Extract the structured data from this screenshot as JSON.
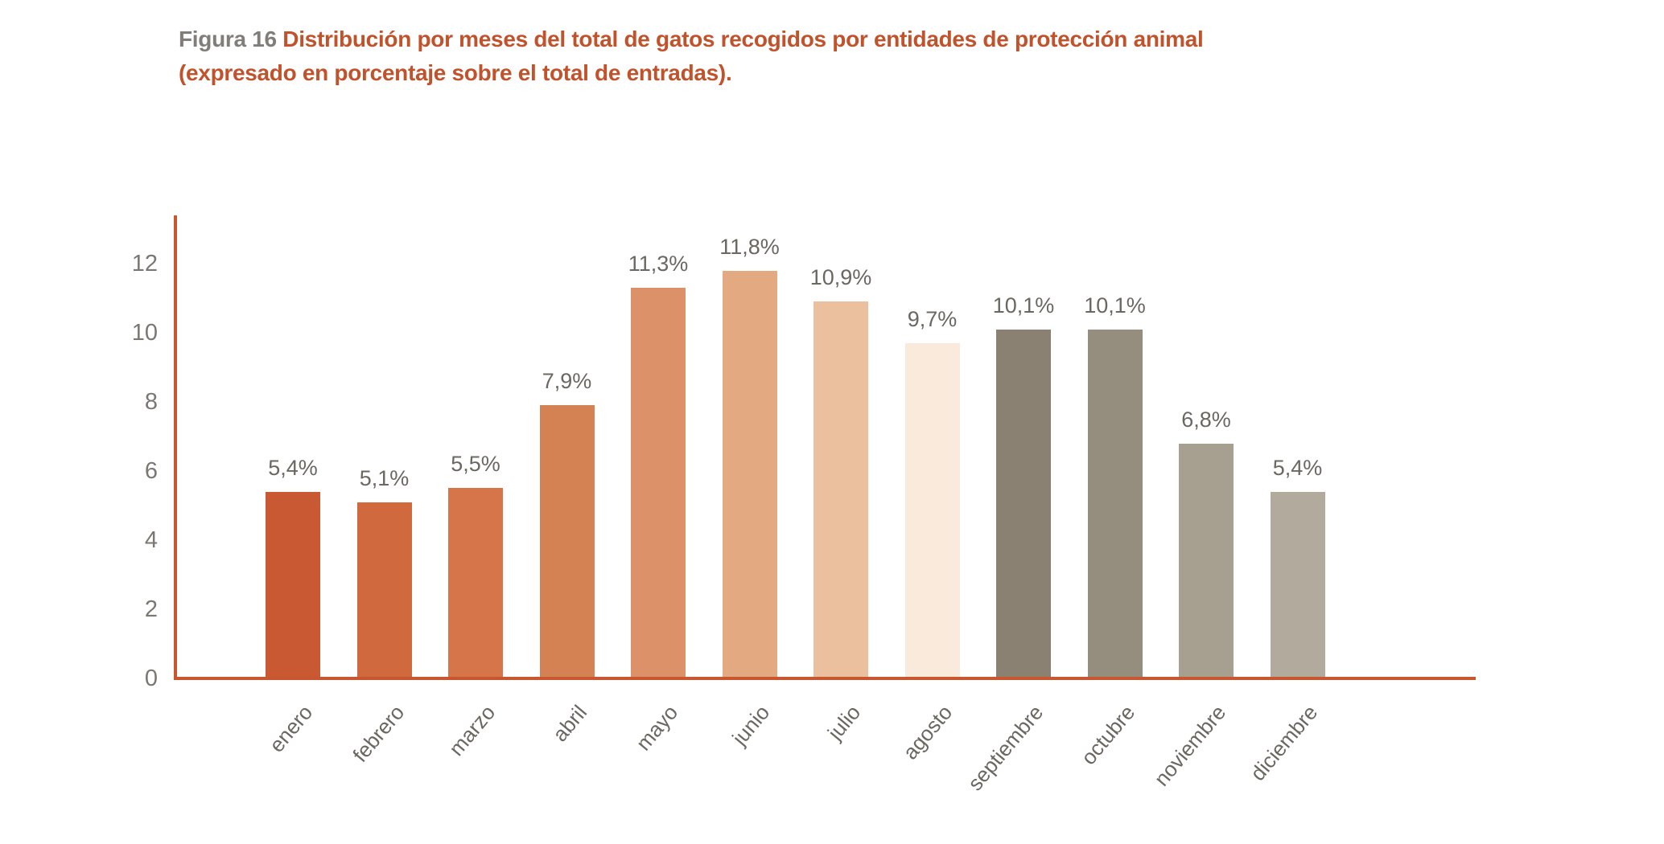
{
  "figure": {
    "label": "Figura 16",
    "title": "Distribución por meses del total de gatos recogidos por entidades de protección animal",
    "subtitle": "(expresado en porcentaje sobre el total de entradas)."
  },
  "chart_data": {
    "type": "bar",
    "title": "Distribución por meses del total de gatos recogidos por entidades de protección animal (expresado en porcentaje sobre el total de entradas).",
    "categories": [
      "enero",
      "febrero",
      "marzo",
      "abril",
      "mayo",
      "junio",
      "julio",
      "agosto",
      "septiembre",
      "octubre",
      "noviembre",
      "diciembre"
    ],
    "values": [
      5.4,
      5.1,
      5.5,
      7.9,
      11.3,
      11.8,
      10.9,
      9.7,
      10.1,
      10.1,
      6.8,
      5.4
    ],
    "value_labels": [
      "5,4%",
      "5,1%",
      "5,5%",
      "7,9%",
      "11,3%",
      "11,8%",
      "10,9%",
      "9,7%",
      "10,1%",
      "10,1%",
      "6,8%",
      "5,4%"
    ],
    "bar_colors": [
      "#c95933",
      "#d1693e",
      "#d57549",
      "#d48253",
      "#dc9168",
      "#e3a981",
      "#eac09f",
      "#f9eadb",
      "#8a8173",
      "#958d7e",
      "#a79f90",
      "#b2ab9d"
    ],
    "xlabel": "",
    "ylabel": "",
    "y_ticks": [
      0,
      2,
      4,
      6,
      8,
      10,
      12
    ],
    "ylim": [
      0,
      13.4
    ],
    "grid": false,
    "legend": null,
    "axis_color": "#c8572f",
    "tick_label_color": "#7b7773",
    "value_label_color": "#6b6761"
  }
}
